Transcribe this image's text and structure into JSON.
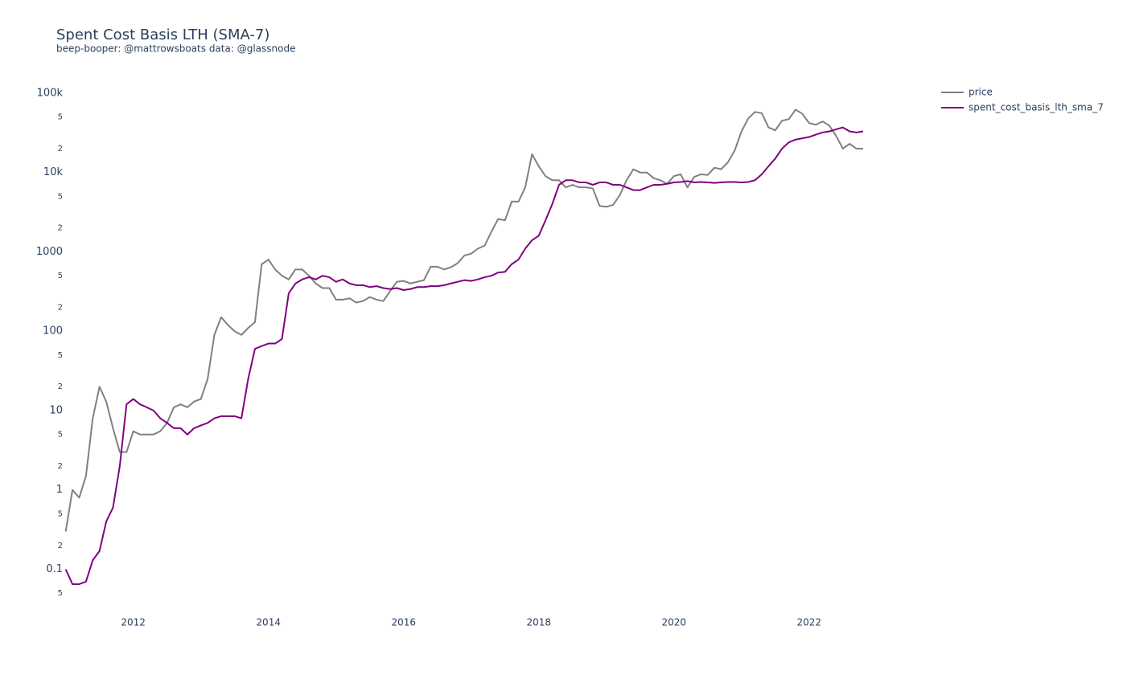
{
  "chart_data": {
    "type": "line",
    "title": "Spent Cost Basis LTH (SMA-7)",
    "subtitle": "beep-booper: @mattrowsboats data: @glassnode",
    "log_y": true,
    "grid": false,
    "legend": "top-right",
    "xlim": [
      2010.98,
      2022.86
    ],
    "xticks": [
      2012,
      2014,
      2016,
      2018,
      2020,
      2022
    ],
    "ylim": [
      0.038,
      145000
    ],
    "yticks": [
      {
        "value": 0.05,
        "label": "5"
      },
      0.1,
      {
        "value": 0.2,
        "label": "2"
      },
      {
        "value": 0.5,
        "label": "5"
      },
      1,
      2,
      5,
      10,
      {
        "value": 20,
        "label": "2"
      },
      {
        "value": 50,
        "label": "5"
      },
      100,
      {
        "value": 200,
        "label": "2"
      },
      {
        "value": 500,
        "label": "5"
      },
      1000,
      {
        "value": 2000,
        "label": "2"
      },
      {
        "value": 5000,
        "label": "5"
      },
      {
        "value": 10000,
        "label": "10k"
      },
      {
        "value": 20000,
        "label": "2"
      },
      {
        "value": 50000,
        "label": "5"
      },
      {
        "value": 100000,
        "label": "100k"
      }
    ],
    "x": [
      2011,
      2011.1,
      2011.2,
      2011.3,
      2011.4,
      2011.5,
      2011.6,
      2011.7,
      2011.8,
      2011.9,
      2012,
      2012.1,
      2012.2,
      2012.3,
      2012.4,
      2012.5,
      2012.6,
      2012.7,
      2012.8,
      2012.9,
      2013,
      2013.1,
      2013.2,
      2013.3,
      2013.4,
      2013.5,
      2013.6,
      2013.7,
      2013.8,
      2013.9,
      2014,
      2014.1,
      2014.2,
      2014.3,
      2014.4,
      2014.5,
      2014.6,
      2014.7,
      2014.8,
      2014.9,
      2015,
      2015.1,
      2015.2,
      2015.3,
      2015.4,
      2015.5,
      2015.6,
      2015.7,
      2015.8,
      2015.9,
      2016,
      2016.1,
      2016.2,
      2016.3,
      2016.4,
      2016.5,
      2016.6,
      2016.7,
      2016.8,
      2016.9,
      2017,
      2017.1,
      2017.2,
      2017.3,
      2017.4,
      2017.5,
      2017.6,
      2017.7,
      2017.8,
      2017.9,
      2018,
      2018.1,
      2018.2,
      2018.3,
      2018.4,
      2018.5,
      2018.6,
      2018.7,
      2018.8,
      2018.9,
      2019,
      2019.1,
      2019.2,
      2019.3,
      2019.4,
      2019.5,
      2019.6,
      2019.7,
      2019.8,
      2019.9,
      2020,
      2020.1,
      2020.2,
      2020.3,
      2020.4,
      2020.5,
      2020.6,
      2020.7,
      2020.8,
      2020.9,
      2021,
      2021.1,
      2021.2,
      2021.3,
      2021.4,
      2021.5,
      2021.6,
      2021.7,
      2021.8,
      2021.9,
      2022,
      2022.1,
      2022.2,
      2022.3,
      2022.4,
      2022.5,
      2022.6,
      2022.7,
      2022.8
    ],
    "series": [
      {
        "name": "price",
        "color": "#808080",
        "values": [
          0.3,
          1.0,
          0.8,
          1.5,
          8,
          20,
          13,
          6,
          3,
          3,
          5.5,
          5,
          5,
          5,
          5.5,
          7,
          11,
          12,
          11,
          13,
          14,
          25,
          90,
          150,
          120,
          100,
          90,
          110,
          130,
          700,
          800,
          600,
          500,
          450,
          600,
          600,
          500,
          400,
          350,
          350,
          250,
          250,
          260,
          230,
          240,
          270,
          250,
          240,
          320,
          420,
          430,
          400,
          420,
          440,
          650,
          650,
          600,
          640,
          720,
          900,
          950,
          1100,
          1200,
          1800,
          2600,
          2500,
          4300,
          4300,
          6500,
          17000,
          12000,
          9000,
          8000,
          8000,
          6500,
          7000,
          6500,
          6500,
          6300,
          3800,
          3700,
          3900,
          5200,
          8000,
          11000,
          10000,
          10000,
          8500,
          8000,
          7200,
          9000,
          9500,
          6500,
          8800,
          9500,
          9300,
          11500,
          11000,
          13500,
          19000,
          33000,
          48000,
          58000,
          56000,
          37000,
          34000,
          45000,
          47000,
          62000,
          55000,
          42000,
          40000,
          44000,
          39000,
          29000,
          20000,
          23000,
          20000,
          20000
        ]
      },
      {
        "name": "spent_cost_basis_lth_sma_7",
        "color": "#800080",
        "values": [
          0.1,
          0.065,
          0.065,
          0.07,
          0.13,
          0.17,
          0.4,
          0.6,
          2,
          12,
          14,
          12,
          11,
          10,
          8,
          7,
          6,
          6,
          5,
          6,
          6.5,
          7,
          8,
          8.5,
          8.5,
          8.5,
          8,
          25,
          60,
          65,
          70,
          70,
          80,
          300,
          400,
          450,
          480,
          450,
          500,
          480,
          420,
          450,
          400,
          380,
          380,
          360,
          370,
          350,
          340,
          350,
          330,
          340,
          360,
          360,
          370,
          370,
          380,
          400,
          420,
          440,
          430,
          450,
          480,
          500,
          550,
          560,
          700,
          800,
          1100,
          1400,
          1600,
          2500,
          4000,
          7000,
          8000,
          8000,
          7500,
          7500,
          7000,
          7500,
          7500,
          7000,
          7000,
          6500,
          6000,
          6000,
          6500,
          7000,
          7000,
          7200,
          7500,
          7600,
          7800,
          7500,
          7600,
          7500,
          7400,
          7500,
          7600,
          7600,
          7500,
          7600,
          8000,
          9500,
          12000,
          15000,
          20000,
          24000,
          26000,
          27000,
          28000,
          30000,
          32000,
          33000,
          35000,
          37000,
          33000,
          32000,
          33000
        ]
      }
    ]
  }
}
